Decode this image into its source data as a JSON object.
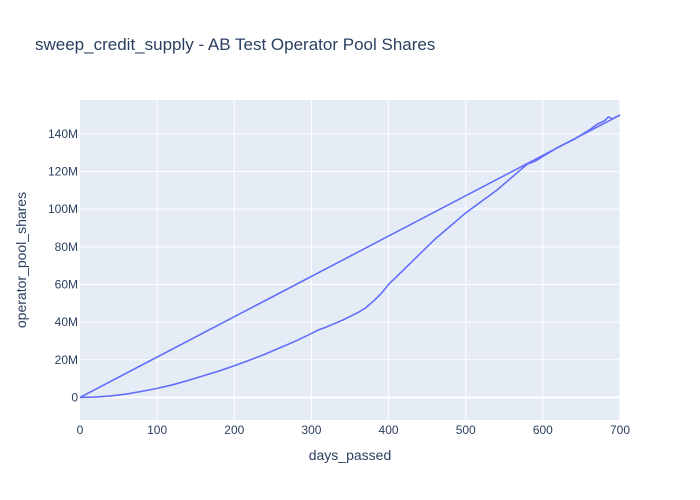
{
  "chart_data": {
    "type": "line",
    "title": "sweep_credit_supply - AB Test Operator Pool Shares",
    "xlabel": "days_passed",
    "ylabel": "operator_pool_shares",
    "xlim": [
      0,
      700
    ],
    "ylim": [
      -12000000,
      158000000
    ],
    "x_ticks": [
      0,
      100,
      200,
      300,
      400,
      500,
      600,
      700
    ],
    "x_tick_labels": [
      "0",
      "100",
      "200",
      "300",
      "400",
      "500",
      "600",
      "700"
    ],
    "y_ticks": [
      0,
      20000000,
      40000000,
      60000000,
      80000000,
      100000000,
      120000000,
      140000000
    ],
    "y_tick_labels": [
      "0",
      "20M",
      "40M",
      "60M",
      "80M",
      "100M",
      "120M",
      "140M"
    ],
    "grid": true,
    "legend": false,
    "colors": {
      "line": "#636efa",
      "plot_bg": "#e5ecf6",
      "grid": "#ffffff",
      "text": "#2a3f5f"
    },
    "series": [
      {
        "x": [
          0,
          700
        ],
        "y": [
          0,
          150000000
        ]
      },
      {
        "x": [
          0,
          20,
          40,
          60,
          80,
          100,
          120,
          140,
          160,
          180,
          200,
          220,
          240,
          260,
          280,
          300,
          310,
          320,
          340,
          360,
          370,
          380,
          390,
          400,
          420,
          440,
          460,
          480,
          500,
          520,
          540,
          560,
          580,
          590,
          600,
          620,
          640,
          660,
          670,
          680,
          685,
          690,
          700
        ],
        "y": [
          0,
          200000,
          800000,
          1800000,
          3200000,
          4800000,
          6700000,
          9000000,
          11500000,
          14000000,
          16800000,
          19800000,
          23000000,
          26500000,
          30000000,
          34000000,
          36000000,
          37500000,
          41000000,
          45000000,
          47500000,
          51000000,
          55000000,
          60000000,
          68000000,
          76000000,
          84000000,
          91000000,
          98000000,
          104000000,
          110000000,
          117000000,
          124000000,
          125500000,
          128000000,
          133000000,
          137000000,
          142000000,
          145000000,
          147000000,
          149000000,
          148000000,
          150000000
        ]
      }
    ]
  }
}
